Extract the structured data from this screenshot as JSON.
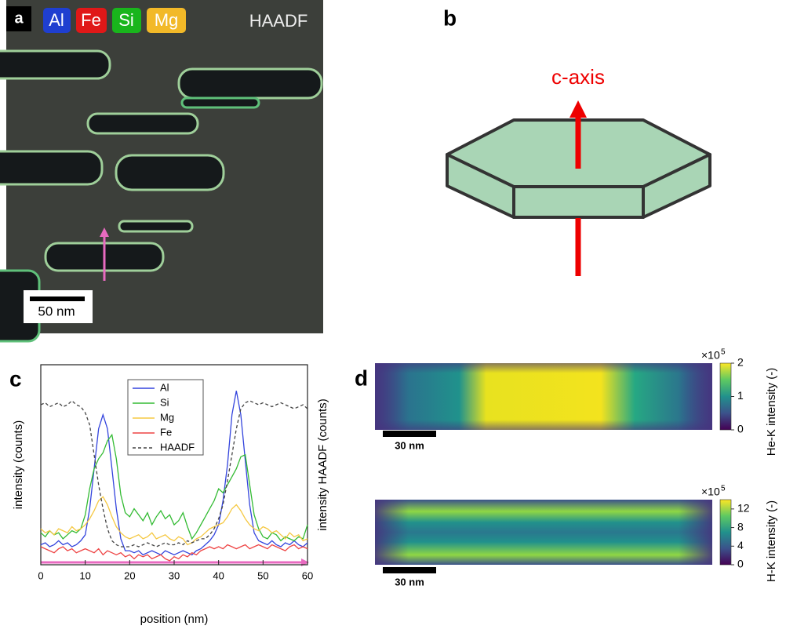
{
  "panel_a": {
    "label": "a",
    "elements": [
      "Al",
      "Fe",
      "Si",
      "Mg"
    ],
    "mode": "HAADF",
    "scale_bar": "50 nm"
  },
  "panel_b": {
    "label": "b",
    "axis_label": "c-axis"
  },
  "chart_data": {
    "type": "line",
    "label": "c",
    "x": [
      0,
      1,
      2,
      3,
      4,
      5,
      6,
      7,
      8,
      9,
      10,
      11,
      12,
      13,
      14,
      15,
      16,
      17,
      18,
      19,
      20,
      21,
      22,
      23,
      24,
      25,
      26,
      27,
      28,
      29,
      30,
      31,
      32,
      33,
      34,
      35,
      36,
      37,
      38,
      39,
      40,
      41,
      42,
      43,
      44,
      45,
      46,
      47,
      48,
      49,
      50,
      51,
      52,
      53,
      54,
      55,
      56,
      57,
      58,
      59,
      60
    ],
    "xlim": [
      0,
      60
    ],
    "xticks": [
      0,
      10,
      20,
      30,
      40,
      50,
      60
    ],
    "ylim": [
      0,
      10
    ],
    "y2lim": [
      0,
      10
    ],
    "xlabel": "position (nm)",
    "ylabel": "intensity (counts)",
    "y2label": "intensity HAADF (counts)",
    "series": [
      {
        "name": "Al",
        "color": "#3344dd",
        "values": [
          1.0,
          1.1,
          0.9,
          1.0,
          1.2,
          1.0,
          1.1,
          0.9,
          1.0,
          1.2,
          1.5,
          2.8,
          4.8,
          6.8,
          7.5,
          6.8,
          4.8,
          2.8,
          1.3,
          0.7,
          0.7,
          0.6,
          0.7,
          0.5,
          0.6,
          0.7,
          0.6,
          0.5,
          0.7,
          0.6,
          0.5,
          0.6,
          0.7,
          0.6,
          0.5,
          0.7,
          0.8,
          1.0,
          1.2,
          1.5,
          2.0,
          3.2,
          5.0,
          7.5,
          8.7,
          7.5,
          5.2,
          3.0,
          1.6,
          1.2,
          1.1,
          1.0,
          1.2,
          1.0,
          0.9,
          1.1,
          1.0,
          1.2,
          1.0,
          0.9,
          1.1
        ]
      },
      {
        "name": "Si",
        "color": "#33bb33",
        "values": [
          1.6,
          1.4,
          1.7,
          1.5,
          1.6,
          1.3,
          1.5,
          1.7,
          1.6,
          1.8,
          2.5,
          3.8,
          4.8,
          5.3,
          5.6,
          6.2,
          6.5,
          5.3,
          3.5,
          2.6,
          2.4,
          2.8,
          2.5,
          2.2,
          2.6,
          2.0,
          2.4,
          2.7,
          2.3,
          2.5,
          2.0,
          2.2,
          2.6,
          1.9,
          1.3,
          1.6,
          2.0,
          2.4,
          2.8,
          3.2,
          3.8,
          3.6,
          4.0,
          4.4,
          4.8,
          5.4,
          5.5,
          4.0,
          2.5,
          1.8,
          1.4,
          1.3,
          1.6,
          1.5,
          1.2,
          1.4,
          1.3,
          1.2,
          1.4,
          1.3,
          2.0
        ]
      },
      {
        "name": "Mg",
        "color": "#f5c842",
        "values": [
          1.8,
          1.6,
          1.7,
          1.5,
          1.8,
          1.7,
          1.6,
          1.9,
          1.7,
          1.8,
          2.0,
          2.3,
          2.7,
          3.2,
          3.4,
          3.0,
          2.4,
          1.9,
          1.6,
          1.4,
          1.3,
          1.4,
          1.5,
          1.3,
          1.4,
          1.6,
          1.3,
          1.4,
          1.5,
          1.3,
          1.2,
          1.4,
          1.3,
          1.0,
          1.1,
          1.3,
          1.4,
          1.6,
          1.8,
          1.9,
          2.0,
          2.1,
          2.4,
          2.8,
          3.0,
          2.7,
          2.3,
          2.0,
          1.8,
          1.7,
          1.9,
          1.8,
          1.6,
          1.7,
          1.5,
          1.3,
          1.6,
          1.4,
          1.5,
          1.2,
          1.3
        ]
      },
      {
        "name": "Fe",
        "color": "#ee4444",
        "values": [
          0.9,
          0.8,
          0.7,
          0.6,
          0.8,
          0.9,
          0.7,
          0.8,
          0.6,
          0.7,
          0.8,
          0.7,
          0.6,
          0.8,
          0.5,
          0.7,
          0.6,
          0.5,
          0.6,
          0.4,
          0.5,
          0.3,
          0.5,
          0.4,
          0.5,
          0.3,
          0.4,
          0.5,
          0.3,
          0.2,
          0.4,
          0.3,
          0.5,
          0.4,
          0.6,
          0.5,
          0.7,
          0.8,
          0.9,
          0.8,
          0.9,
          0.8,
          1.0,
          0.9,
          0.8,
          0.9,
          1.0,
          0.8,
          0.9,
          1.0,
          0.9,
          0.8,
          1.0,
          0.9,
          0.8,
          0.7,
          0.9,
          1.0,
          0.8,
          0.9,
          0.8
        ]
      },
      {
        "name": "HAADF",
        "color": "#444444",
        "line_style": "dashed",
        "axis": "y2",
        "values": [
          8.0,
          8.1,
          7.9,
          8.0,
          8.1,
          7.9,
          8.0,
          8.2,
          8.0,
          7.9,
          7.6,
          7.0,
          5.5,
          4.0,
          2.8,
          1.8,
          1.2,
          1.0,
          0.9,
          0.9,
          0.9,
          1.0,
          0.9,
          1.0,
          1.1,
          1.0,
          0.9,
          1.0,
          1.1,
          1.0,
          1.0,
          1.1,
          1.0,
          1.2,
          1.1,
          1.2,
          1.3,
          1.3,
          1.5,
          1.8,
          2.3,
          3.0,
          4.2,
          5.5,
          6.8,
          7.8,
          8.1,
          8.2,
          8.1,
          8.0,
          8.1,
          8.0,
          7.9,
          8.0,
          8.1,
          8.0,
          7.9,
          7.8,
          7.9,
          8.0,
          7.8
        ]
      }
    ]
  },
  "panel_d": {
    "label": "d",
    "maps": [
      {
        "label": "He-K intensity (-)",
        "multiplier_base": "×10",
        "multiplier_exp": "5",
        "clim": [
          0,
          2
        ],
        "cticks": [
          0,
          1,
          2
        ],
        "scale_bar": "30 nm"
      },
      {
        "label": "H-K intensity (-)",
        "multiplier_base": "×10",
        "multiplier_exp": "5",
        "clim": [
          0,
          14
        ],
        "cticks": [
          0,
          4,
          8,
          12
        ],
        "scale_bar": "30 nm"
      }
    ]
  }
}
